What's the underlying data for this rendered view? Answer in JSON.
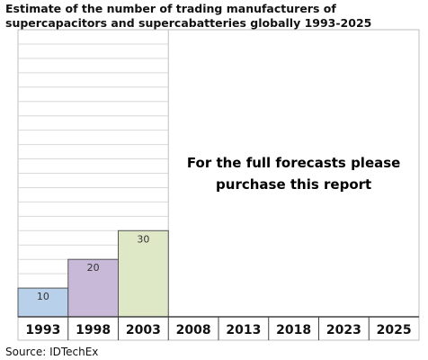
{
  "chart_data": {
    "type": "bar",
    "title": "Estimate of the number of trading manufacturers of supercapacitors and supercabatteries globally 1993-2025",
    "categories": [
      "1993",
      "1998",
      "2003",
      "2008",
      "2013",
      "2018",
      "2023",
      "2025"
    ],
    "values": [
      10,
      20,
      30,
      null,
      null,
      null,
      null,
      null
    ],
    "ylim": [
      0,
      100
    ],
    "grid": true,
    "bar_colors": [
      "#b8d0ea",
      "#c9b9d9",
      "#dfe8c6"
    ],
    "overlay_text": [
      "For the full forecasts please",
      "purchase this report"
    ],
    "source": "Source: IDTechEx"
  }
}
